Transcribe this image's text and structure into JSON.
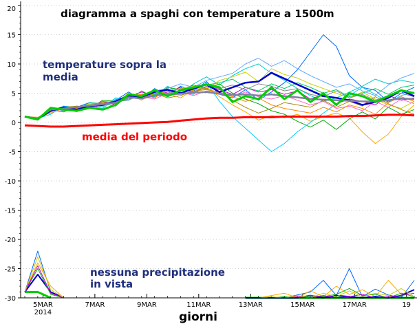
{
  "chart_data": {
    "type": "line",
    "title": "diagramma a spaghi con temperature a 1500m",
    "xlabel": "giorni",
    "ylabel": "",
    "ylim": [
      -30,
      20
    ],
    "xlim": [
      0,
      30
    ],
    "grid": "dotted horizontal at major y ticks",
    "y_ticks": [
      20,
      15,
      10,
      5,
      0,
      -5,
      -10,
      -15,
      -20,
      -25,
      -30
    ],
    "x_ticks": [
      {
        "x": 1.4,
        "label": "5MAR",
        "sub": "2014"
      },
      {
        "x": 5.4,
        "label": "7MAR"
      },
      {
        "x": 9.4,
        "label": "9MAR"
      },
      {
        "x": 13.4,
        "label": "11MAR"
      },
      {
        "x": 17.4,
        "label": "13MAR"
      },
      {
        "x": 21.4,
        "label": "15MAR"
      },
      {
        "x": 25.4,
        "label": "17MAR"
      },
      {
        "x": 29.4,
        "label": "19"
      }
    ],
    "annotations": {
      "above": "temperature sopra la media",
      "above_line1": "temperature sopra la",
      "above_line2": "media",
      "mean": "media del periodo",
      "precip": "nessuna precipitazione in vista",
      "precip_line1": "nessuna precipitazione",
      "precip_line2": "in vista"
    },
    "series": [
      {
        "color": "#ff0000",
        "width": 3,
        "values": [
          -0.5,
          -0.6,
          -0.7,
          -0.7,
          -0.6,
          -0.5,
          -0.4,
          -0.3,
          -0.2,
          -0.1,
          0.0,
          0.1,
          0.3,
          0.5,
          0.7,
          0.8,
          0.8,
          0.9,
          0.9,
          0.9,
          1.0,
          1.0,
          1.0,
          1.0,
          1.0,
          1.1,
          1.1,
          1.2,
          1.3,
          1.3,
          1.2
        ]
      },
      {
        "color": "#00cc00",
        "width": 3,
        "values": [
          1.0,
          0.5,
          2.5,
          2.2,
          2.0,
          2.5,
          2.2,
          3.0,
          4.8,
          4.5,
          5.5,
          4.5,
          5.5,
          6.0,
          6.5,
          6.0,
          3.5,
          4.5,
          4.0,
          6.0,
          4.0,
          5.5,
          3.5,
          5.0,
          3.0,
          5.0,
          4.5,
          3.5,
          4.5,
          5.5,
          5.0
        ]
      },
      {
        "color": "#0000cc",
        "width": 2.5,
        "values": [
          1.0,
          0.6,
          2.0,
          2.6,
          2.2,
          2.8,
          3.0,
          3.6,
          4.6,
          4.4,
          5.2,
          5.6,
          5.0,
          5.8,
          6.5,
          5.2,
          6.0,
          6.8,
          7.0,
          8.5,
          7.5,
          6.5,
          5.5,
          4.5,
          4.2,
          3.8,
          3.0,
          3.5,
          4.2,
          5.5,
          4.5
        ]
      },
      {
        "color": "#8080a0",
        "width": 2.5,
        "values": [
          1.0,
          0.7,
          2.2,
          2.4,
          2.6,
          2.9,
          3.1,
          3.4,
          4.3,
          4.1,
          4.6,
          4.8,
          4.9,
          5.1,
          5.2,
          4.9,
          4.7,
          4.8,
          4.6,
          4.8,
          4.5,
          4.3,
          4.0,
          3.9,
          3.8,
          3.7,
          3.6,
          3.6,
          3.8,
          4.1,
          4.0
        ]
      },
      {
        "color": "#0066ff",
        "width": 1,
        "values": [
          1.0,
          0.4,
          2.5,
          2.0,
          2.6,
          3.4,
          3.0,
          3.8,
          5.2,
          4.0,
          5.8,
          4.6,
          6.2,
          5.4,
          7.0,
          4.8,
          4.2,
          5.6,
          3.8,
          5.2,
          6.8,
          9.0,
          12.0,
          15.0,
          13.0,
          8.0,
          6.0,
          5.5,
          3.5,
          5.0,
          6.0
        ]
      },
      {
        "color": "#00cccc",
        "width": 1,
        "values": [
          1.0,
          0.8,
          1.8,
          2.8,
          2.0,
          3.2,
          2.6,
          4.2,
          4.0,
          4.8,
          4.4,
          6.2,
          4.8,
          6.6,
          7.8,
          6.4,
          8.0,
          9.2,
          10.0,
          8.4,
          7.2,
          5.8,
          4.6,
          3.6,
          4.2,
          5.2,
          6.2,
          7.4,
          6.6,
          7.2,
          6.8
        ]
      },
      {
        "color": "#ffa500",
        "width": 1,
        "values": [
          1.0,
          0.9,
          1.6,
          2.4,
          1.8,
          3.0,
          3.4,
          3.2,
          4.8,
          3.8,
          5.2,
          5.0,
          4.2,
          5.6,
          6.0,
          4.4,
          3.0,
          1.8,
          0.4,
          1.2,
          0.8,
          1.4,
          0.2,
          1.0,
          1.6,
          0.8,
          -1.6,
          -3.6,
          -2.0,
          1.0,
          3.0
        ]
      },
      {
        "color": "#cc00cc",
        "width": 1,
        "values": [
          1.0,
          0.5,
          2.2,
          1.8,
          2.8,
          2.6,
          3.6,
          3.0,
          4.4,
          5.2,
          4.6,
          5.2,
          6.0,
          5.0,
          6.2,
          5.6,
          4.8,
          6.0,
          5.2,
          5.6,
          4.8,
          5.4,
          4.0,
          4.8,
          3.2,
          4.0,
          3.6,
          3.0,
          4.6,
          3.8,
          4.2
        ]
      },
      {
        "color": "#00aa00",
        "width": 1,
        "values": [
          1.0,
          0.6,
          2.0,
          2.6,
          2.4,
          2.4,
          3.8,
          3.6,
          3.8,
          5.4,
          4.2,
          6.0,
          5.6,
          6.4,
          5.8,
          6.6,
          5.0,
          4.0,
          3.2,
          2.0,
          1.4,
          0.2,
          -0.8,
          0.4,
          -1.2,
          0.6,
          1.8,
          0.6,
          2.6,
          1.4,
          2.2
        ]
      },
      {
        "color": "#00ccff",
        "width": 1,
        "values": [
          1.0,
          0.7,
          1.4,
          2.8,
          2.6,
          2.8,
          2.4,
          4.0,
          4.2,
          4.4,
          5.6,
          4.4,
          5.2,
          4.8,
          6.8,
          3.6,
          1.0,
          -1.0,
          -3.0,
          -5.0,
          -3.6,
          -1.6,
          0.0,
          1.6,
          3.2,
          4.6,
          6.0,
          4.8,
          3.4,
          4.6,
          5.2
        ]
      },
      {
        "color": "#cccc00",
        "width": 1,
        "values": [
          1.0,
          0.8,
          2.4,
          2.2,
          2.2,
          3.2,
          3.2,
          3.4,
          5.0,
          4.6,
          4.8,
          5.4,
          5.8,
          6.2,
          5.6,
          7.2,
          7.8,
          8.6,
          7.0,
          9.2,
          8.2,
          7.6,
          6.6,
          5.8,
          5.0,
          4.2,
          5.2,
          4.0,
          3.0,
          2.4,
          3.6
        ]
      },
      {
        "color": "#aa8800",
        "width": 1,
        "values": [
          1.0,
          0.6,
          1.8,
          2.6,
          2.8,
          2.6,
          3.4,
          3.2,
          4.6,
          4.2,
          5.0,
          4.2,
          4.6,
          5.4,
          5.6,
          5.2,
          3.8,
          2.6,
          1.6,
          2.4,
          3.4,
          3.0,
          2.6,
          3.8,
          2.6,
          3.6,
          2.8,
          4.4,
          3.2,
          2.2,
          1.4
        ]
      },
      {
        "color": "#66aaff",
        "width": 1,
        "values": [
          1.0,
          0.5,
          2.6,
          2.0,
          2.2,
          3.0,
          2.8,
          3.8,
          3.8,
          4.8,
          5.4,
          5.8,
          6.6,
          6.0,
          7.2,
          7.8,
          8.4,
          10.0,
          11.0,
          9.6,
          10.6,
          9.2,
          8.0,
          7.0,
          6.0,
          6.6,
          5.4,
          4.6,
          6.4,
          7.6,
          8.4
        ]
      },
      {
        "color": "#ff66cc",
        "width": 1,
        "values": [
          1.0,
          0.7,
          2.0,
          2.4,
          2.4,
          2.4,
          3.0,
          3.6,
          4.4,
          4.4,
          4.0,
          5.0,
          5.2,
          4.6,
          5.4,
          5.2,
          4.4,
          5.2,
          4.4,
          4.0,
          4.6,
          3.8,
          3.0,
          3.6,
          2.4,
          2.8,
          2.0,
          3.6,
          2.6,
          4.0,
          3.2
        ]
      },
      {
        "color": "#00cc66",
        "width": 1,
        "values": [
          1.0,
          0.8,
          2.2,
          2.6,
          2.2,
          3.4,
          3.2,
          2.8,
          4.8,
          4.0,
          4.8,
          4.8,
          5.4,
          5.8,
          6.4,
          6.8,
          7.4,
          6.0,
          5.4,
          6.6,
          5.8,
          6.8,
          6.0,
          5.0,
          5.6,
          4.4,
          5.0,
          5.8,
          4.8,
          6.0,
          6.4
        ]
      },
      {
        "color": "#888888",
        "width": 1,
        "values": [
          1.0,
          0.6,
          2.4,
          2.2,
          2.6,
          2.8,
          3.6,
          3.4,
          4.0,
          4.6,
          5.0,
          5.0,
          5.8,
          5.2,
          6.2,
          5.8,
          6.4,
          5.6,
          6.6,
          6.2,
          5.4,
          5.8,
          4.8,
          4.4,
          5.4,
          4.2,
          4.8,
          3.8,
          4.6,
          5.0,
          4.4
        ]
      },
      {
        "color": "#ff8800",
        "width": 1,
        "values": [
          1.0,
          0.7,
          1.8,
          2.6,
          2.4,
          3.0,
          3.0,
          3.4,
          4.6,
          4.8,
          4.2,
          5.6,
          5.0,
          5.6,
          5.8,
          5.0,
          4.4,
          3.6,
          4.2,
          3.0,
          2.4,
          2.0,
          1.6,
          2.6,
          1.8,
          3.0,
          2.4,
          1.4,
          3.4,
          4.4,
          3.6
        ]
      }
    ],
    "precip_series": [
      {
        "color": "#00cc00",
        "width": 3,
        "values": [
          -29,
          -29,
          -30,
          null,
          null,
          null,
          null,
          null,
          null,
          null,
          null,
          null,
          null,
          null,
          null,
          null,
          null,
          -30,
          -30,
          -30,
          -30,
          -30,
          -30,
          -30,
          -30,
          -30,
          -30,
          -30,
          -30,
          -30,
          -30
        ]
      },
      {
        "color": "#0066ff",
        "width": 1,
        "values": [
          -29,
          -22,
          -29,
          -30,
          null,
          null,
          null,
          null,
          null,
          null,
          null,
          null,
          null,
          null,
          null,
          null,
          null,
          -30,
          -30,
          -30,
          -30,
          -29.5,
          -29,
          -27,
          -29.6,
          -25,
          -29.8,
          -28.5,
          -29.5,
          -30,
          -27
        ]
      },
      {
        "color": "#ffa500",
        "width": 1,
        "values": [
          -29,
          -24,
          -28,
          -30,
          null,
          null,
          null,
          null,
          null,
          null,
          null,
          null,
          null,
          null,
          null,
          null,
          null,
          -30,
          -30,
          -29.6,
          -29.2,
          -30,
          -28.8,
          -29.8,
          -28,
          -29.4,
          -28.6,
          -29.8,
          -27,
          -29.4,
          -28.6
        ]
      },
      {
        "color": "#0000cc",
        "width": 2,
        "values": [
          -29,
          -26,
          -29,
          -30,
          null,
          null,
          null,
          null,
          null,
          null,
          null,
          null,
          null,
          null,
          null,
          null,
          null,
          -30,
          -30,
          -30,
          -30,
          -30,
          -29.6,
          -30,
          -29.6,
          -29.8,
          -30,
          -29.8,
          -30,
          -29.6,
          -28.6
        ]
      },
      {
        "color": "#00aa00",
        "width": 1,
        "values": [
          -29,
          -25,
          -29.4,
          -30,
          null,
          null,
          null,
          null,
          null,
          null,
          null,
          null,
          null,
          null,
          null,
          null,
          null,
          -30,
          -30,
          -30,
          -29.8,
          -30,
          -29.6,
          -29.8,
          -29.4,
          -28.4,
          -29.6,
          -29.4,
          -30,
          -29.2,
          -29.8
        ]
      },
      {
        "color": "#cc00cc",
        "width": 1,
        "values": [
          -29,
          -24.5,
          -29.2,
          -30,
          null,
          null,
          null,
          null,
          null,
          null,
          null,
          null,
          null,
          null,
          null,
          null,
          null,
          -30,
          -30,
          -30,
          -30,
          -29.8,
          -30,
          -29.6,
          -30,
          -29.8,
          -29.4,
          -30,
          -29.8,
          -29.6,
          -29.2
        ]
      },
      {
        "color": "#cccc00",
        "width": 1,
        "values": [
          -29,
          -23,
          -28.6,
          -30,
          null,
          null,
          null,
          null,
          null,
          null,
          null,
          null,
          null,
          null,
          null,
          null,
          null,
          -30,
          -30,
          -29.8,
          -30,
          -29.6,
          -30,
          -29.2,
          -29.8,
          -28.8,
          -29.8,
          -29.2,
          -29.6,
          -28.4,
          -29.8
        ]
      }
    ]
  }
}
